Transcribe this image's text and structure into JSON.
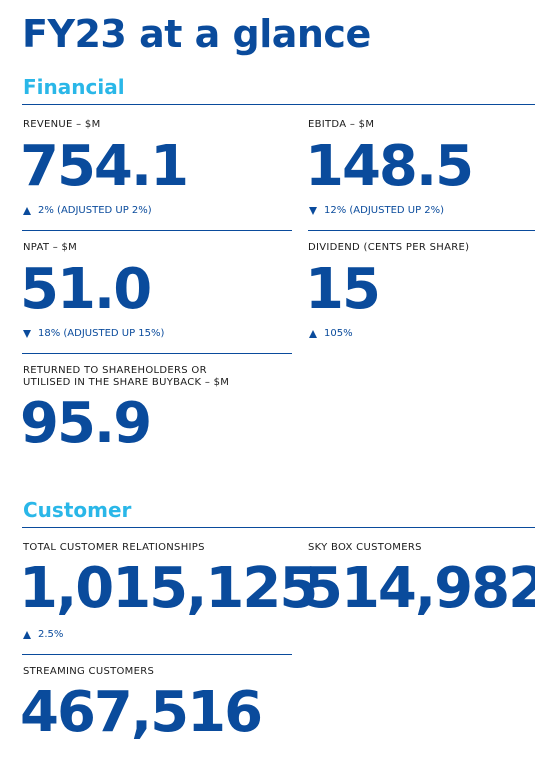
{
  "title": "FY23 at a glance",
  "financial": {
    "heading": "Financial",
    "revenue": {
      "label": "REVENUE – $M",
      "value": "754.1",
      "direction": "up",
      "change": "2% (ADJUSTED UP 2%)"
    },
    "ebitda": {
      "label": "EBITDA – $M",
      "value": "148.5",
      "direction": "down",
      "change": "12% (ADJUSTED UP 2%)"
    },
    "npat": {
      "label": "NPAT – $M",
      "value": "51.0",
      "direction": "down",
      "change": "18% (ADJUSTED UP 15%)"
    },
    "dividend": {
      "label": "DIVIDEND (CENTS PER SHARE)",
      "value": "15",
      "direction": "up",
      "change": "105%"
    },
    "returned": {
      "label_line1": "RETURNED TO SHAREHOLDERS OR",
      "label_line2": "UTILISED IN THE SHARE BUYBACK – $M",
      "value": "95.9"
    }
  },
  "customer": {
    "heading": "Customer",
    "total_relationships": {
      "label": "TOTAL CUSTOMER RELATIONSHIPS",
      "value": "1,015,125",
      "direction": "up",
      "change": "2.5%"
    },
    "sky_box": {
      "label": "SKY BOX CUSTOMERS",
      "value": "514,982"
    },
    "streaming": {
      "label": "STREAMING CUSTOMERS",
      "value": "467,516"
    }
  },
  "colors": {
    "primary": "#0a4b9c",
    "accent": "#2ab7e8",
    "label_text": "#1b1b1b"
  }
}
